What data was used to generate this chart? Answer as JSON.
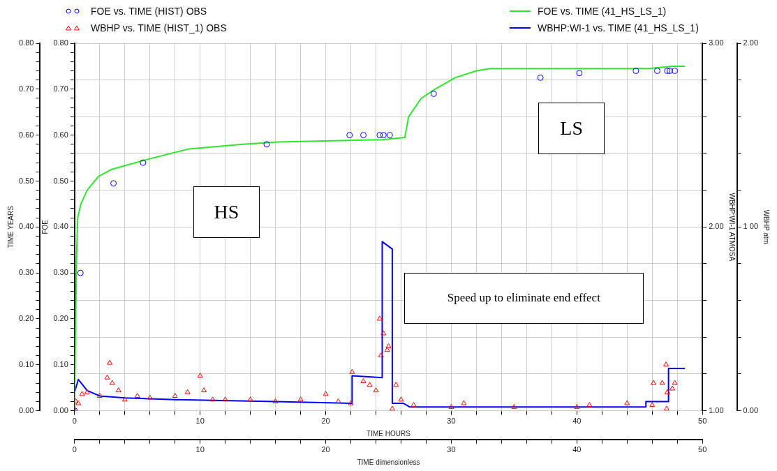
{
  "chart_data": {
    "type": "line",
    "xlabel": "TIME HOURS",
    "x2label": "TIME dimensionless",
    "ylabel": "FOE",
    "y2label": "WBHP:WI-1 ATMOSA",
    "y3label": "WBHP atm",
    "xlim": [
      0,
      50
    ],
    "x2lim": [
      0,
      50
    ],
    "xticks": [
      0,
      {
        "value": 2,
        "label": null
      },
      {
        "value": 4,
        "label": null
      },
      {
        "value": 6,
        "label": null
      },
      {
        "value": 8,
        "label": null
      },
      10,
      {
        "value": 12,
        "label": null
      },
      {
        "value": 14,
        "label": null
      },
      {
        "value": 16,
        "label": null
      },
      {
        "value": 18,
        "label": null
      },
      20,
      {
        "value": 22,
        "label": null
      },
      {
        "value": 24,
        "label": null
      },
      {
        "value": 26,
        "label": null
      },
      {
        "value": 28,
        "label": null
      },
      30,
      {
        "value": 32,
        "label": null
      },
      {
        "value": 34,
        "label": null
      },
      {
        "value": 36,
        "label": null
      },
      {
        "value": 38,
        "label": null
      },
      40,
      {
        "value": 42,
        "label": null
      },
      {
        "value": 44,
        "label": null
      },
      {
        "value": 46,
        "label": null
      },
      {
        "value": 48,
        "label": null
      },
      50
    ],
    "x2ticks": [
      0,
      {
        "value": 2,
        "label": null
      },
      {
        "value": 4,
        "label": null
      },
      {
        "value": 6,
        "label": null
      },
      {
        "value": 8,
        "label": null
      },
      10,
      {
        "value": 12,
        "label": null
      },
      {
        "value": 14,
        "label": null
      },
      {
        "value": 16,
        "label": null
      },
      {
        "value": 18,
        "label": null
      },
      20,
      {
        "value": 22,
        "label": null
      },
      {
        "value": 24,
        "label": null
      },
      {
        "value": 26,
        "label": null
      },
      {
        "value": 28,
        "label": null
      },
      30,
      {
        "value": 32,
        "label": null
      },
      {
        "value": 34,
        "label": null
      },
      {
        "value": 36,
        "label": null
      },
      {
        "value": 38,
        "label": null
      },
      40,
      {
        "value": 42,
        "label": null
      },
      {
        "value": 44,
        "label": null
      },
      {
        "value": 46,
        "label": null
      },
      {
        "value": 48,
        "label": null
      },
      50
    ],
    "ylim": [
      0,
      0.8
    ],
    "yticks": [
      {
        "value": 0,
        "label": "0.00"
      },
      {
        "value": 0.02,
        "label": null
      },
      {
        "value": 0.04,
        "label": null
      },
      {
        "value": 0.06,
        "label": null
      },
      {
        "value": 0.08,
        "label": null
      },
      {
        "value": 0.1,
        "label": "0.10"
      },
      {
        "value": 0.12,
        "label": null
      },
      {
        "value": 0.14,
        "label": null
      },
      {
        "value": 0.16,
        "label": null
      },
      {
        "value": 0.18,
        "label": null
      },
      {
        "value": 0.2,
        "label": "0.20"
      },
      {
        "value": 0.22,
        "label": null
      },
      {
        "value": 0.24,
        "label": null
      },
      {
        "value": 0.26,
        "label": null
      },
      {
        "value": 0.28,
        "label": null
      },
      {
        "value": 0.3,
        "label": "0.30"
      },
      {
        "value": 0.32,
        "label": null
      },
      {
        "value": 0.34,
        "label": null
      },
      {
        "value": 0.36,
        "label": null
      },
      {
        "value": 0.38,
        "label": null
      },
      {
        "value": 0.4,
        "label": "0.40"
      },
      {
        "value": 0.42,
        "label": null
      },
      {
        "value": 0.44,
        "label": null
      },
      {
        "value": 0.46,
        "label": null
      },
      {
        "value": 0.48,
        "label": null
      },
      {
        "value": 0.5,
        "label": "0.50"
      },
      {
        "value": 0.52,
        "label": null
      },
      {
        "value": 0.54,
        "label": null
      },
      {
        "value": 0.56,
        "label": null
      },
      {
        "value": 0.58,
        "label": null
      },
      {
        "value": 0.6,
        "label": "0.60"
      },
      {
        "value": 0.62,
        "label": null
      },
      {
        "value": 0.64,
        "label": null
      },
      {
        "value": 0.66,
        "label": null
      },
      {
        "value": 0.68,
        "label": null
      },
      {
        "value": 0.7,
        "label": "0.70"
      },
      {
        "value": 0.72,
        "label": null
      },
      {
        "value": 0.74,
        "label": null
      },
      {
        "value": 0.76,
        "label": null
      },
      {
        "value": 0.78,
        "label": null
      },
      {
        "value": 0.8,
        "label": "0.80"
      }
    ],
    "y2lim": [
      1,
      3
    ],
    "y2ticks": [
      {
        "value": 1,
        "label": "1.00"
      },
      {
        "value": 1.2,
        "label": null
      },
      {
        "value": 1.4,
        "label": null
      },
      {
        "value": 1.6,
        "label": null
      },
      {
        "value": 1.8,
        "label": null
      },
      {
        "value": 2,
        "label": "2.00"
      },
      {
        "value": 2.2,
        "label": null
      },
      {
        "value": 2.4,
        "label": null
      },
      {
        "value": 2.6,
        "label": null
      },
      {
        "value": 2.8,
        "label": null
      },
      {
        "value": 3,
        "label": "3.00"
      }
    ],
    "y3lim": [
      0,
      2
    ],
    "y3ticks": [
      {
        "value": 0,
        "label": "0.00"
      },
      {
        "value": 0.2,
        "label": null
      },
      {
        "value": 0.4,
        "label": null
      },
      {
        "value": 0.6,
        "label": null
      },
      {
        "value": 0.8,
        "label": null
      },
      {
        "value": 1,
        "label": "1 00"
      },
      {
        "value": 1.2,
        "label": null
      },
      {
        "value": 1.4,
        "label": null
      },
      {
        "value": 1.6,
        "label": null
      },
      {
        "value": 1.8,
        "label": null
      },
      {
        "value": 2,
        "label": "2.00"
      }
    ],
    "grid": true,
    "legend": "top",
    "annotations": [
      "HS",
      "LS",
      "Speed up to eliminate end effect",
      "TIME YEARS"
    ],
    "series": [
      {
        "name": "FOE vs. TIME (HIST) OBS",
        "type": "scatter",
        "marker": "circle",
        "color": "#0000ff",
        "x": [
          0,
          0.47,
          3.1,
          5.45,
          15.3,
          21.9,
          23,
          24.3,
          24.6,
          25.1,
          28.6,
          37.1,
          40.2,
          44.7,
          46.4,
          47.2,
          47.4,
          47.8
        ],
        "values": [
          0,
          0.3,
          0.495,
          0.54,
          0.58,
          0.6,
          0.6,
          0.6,
          0.6,
          0.6,
          0.69,
          0.725,
          0.735,
          0.74,
          0.74,
          0.74,
          0.74,
          0.74
        ]
      },
      {
        "name": "WBHP vs. TIME (HIST_1) OBS",
        "type": "scatter",
        "marker": "triangle",
        "axis": "y3",
        "color": "#ff0000",
        "x": [
          0,
          0.1,
          0.3,
          0.6,
          1,
          2,
          2.6,
          2.8,
          3,
          3.5,
          4,
          5,
          6,
          8,
          9,
          10,
          10.3,
          11,
          12,
          14,
          16,
          18,
          20,
          21,
          22,
          22.1,
          23,
          23.5,
          24,
          24.3,
          24.4,
          24.6,
          24.9,
          25,
          25.3,
          25.6,
          26,
          27,
          30,
          31,
          35,
          40,
          41,
          44,
          46,
          46.1,
          46.8,
          47.1,
          47.15,
          47.2,
          47.6,
          47.8
        ],
        "values": [
          0,
          0.05,
          0.04,
          0.09,
          0.1,
          0.08,
          0.18,
          0.26,
          0.15,
          0.11,
          0.06,
          0.08,
          0.07,
          0.08,
          0.1,
          0.19,
          0.11,
          0.06,
          0.06,
          0.06,
          0.05,
          0.06,
          0.09,
          0.05,
          0.04,
          0.21,
          0.16,
          0.14,
          0.11,
          0.5,
          0.3,
          0.42,
          0.33,
          0.35,
          0.01,
          0.14,
          0.06,
          0.03,
          0.02,
          0.04,
          0.02,
          0.02,
          0.03,
          0.04,
          0.03,
          0.15,
          0.15,
          0.25,
          0.01,
          0.1,
          0.12,
          0.15
        ]
      },
      {
        "name": "FOE vs. TIME (41_HS_LS_1)",
        "type": "line",
        "marker": "none",
        "color": "#2ee62e",
        "x": [
          0,
          0.05,
          0.15,
          0.25,
          0.5,
          1,
          1.9,
          2.9,
          5.5,
          9.1,
          13.4,
          16.2,
          24.5,
          26.3,
          26.6,
          27.6,
          28.7,
          30.3,
          32,
          33.1,
          45.7,
          47.6,
          48.6
        ],
        "values": [
          0,
          0.12,
          0.33,
          0.42,
          0.45,
          0.48,
          0.51,
          0.525,
          0.545,
          0.57,
          0.58,
          0.585,
          0.59,
          0.595,
          0.64,
          0.68,
          0.7,
          0.725,
          0.74,
          0.745,
          0.745,
          0.75,
          0.75
        ]
      },
      {
        "name": "WBHP:WI-1 vs. TIME (41_HS_LS_1)",
        "type": "line",
        "marker": "none",
        "axis": "y2",
        "color": "#0000ff",
        "x": [
          0,
          0.3,
          1,
          2,
          4,
          8,
          16,
          22.1,
          22.1,
          24.5,
          24.5,
          25.3,
          25.3,
          26.2,
          26.7,
          28.7,
          45.5,
          45.5,
          47.3,
          47.3,
          48.6
        ],
        "values": [
          1.1,
          1.17,
          1.11,
          1.08,
          1.07,
          1.06,
          1.05,
          1.04,
          1.19,
          1.18,
          1.92,
          1.88,
          1.04,
          1.04,
          1.02,
          1.02,
          1.02,
          1.05,
          1.05,
          1.23,
          1.23
        ]
      }
    ]
  }
}
